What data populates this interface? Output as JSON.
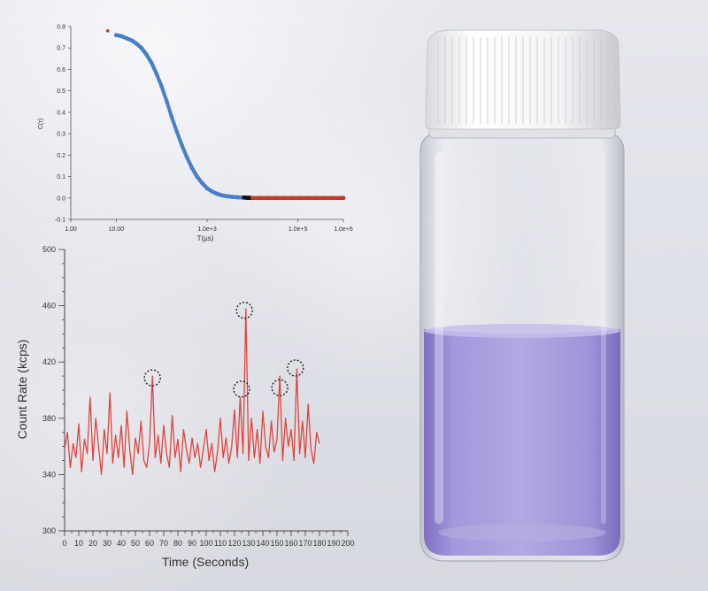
{
  "chart_data": [
    {
      "type": "scatter",
      "title": "",
      "xlabel": "T(µs)",
      "ylabel": "C(τ)",
      "xscale": "log",
      "xlim": [
        1,
        1000000
      ],
      "ylim": [
        -0.1,
        0.8
      ],
      "x_ticks": [
        1,
        10,
        1000,
        100000,
        1000000
      ],
      "x_tick_labels": [
        "1.00",
        "10.00",
        "1.0e+3",
        "1.0e+5",
        "1.0e+6"
      ],
      "y_ticks": [
        -0.1,
        0.0,
        0.1,
        0.2,
        0.3,
        0.4,
        0.5,
        0.6,
        0.7,
        0.8
      ],
      "y_tick_labels": [
        "-0.1",
        "0.0",
        "0.1",
        "0.2",
        "0.3",
        "0.4",
        "0.5",
        "0.6",
        "0.7",
        "0.8"
      ],
      "grid": false,
      "series": [
        {
          "color": "#c0392b",
          "x": [
            6.5
          ],
          "y": [
            0.78
          ],
          "style": "point"
        },
        {
          "color": "#4a7ec8",
          "x": [
            10,
            13,
            17,
            22,
            28,
            36,
            46,
            60,
            77,
            100,
            130,
            165,
            215,
            280,
            360,
            465,
            600,
            775,
            1000,
            1300,
            1670,
            2150,
            2800,
            3600,
            4650,
            6000
          ],
          "y": [
            0.76,
            0.755,
            0.745,
            0.735,
            0.72,
            0.7,
            0.67,
            0.63,
            0.58,
            0.52,
            0.45,
            0.38,
            0.31,
            0.245,
            0.19,
            0.14,
            0.1,
            0.07,
            0.045,
            0.03,
            0.019,
            0.012,
            0.008,
            0.005,
            0.003,
            0.002
          ],
          "style": "points"
        },
        {
          "color": "#111111",
          "x": [
            6500,
            7500,
            8500,
            9500
          ],
          "y": [
            0.002,
            0.001,
            0.001,
            0.0
          ],
          "style": "points"
        },
        {
          "color": "#c0392b",
          "x": [
            10000,
            15000,
            22000,
            33000,
            50000,
            75000,
            110000,
            170000,
            250000,
            380000,
            570000,
            860000,
            1000000
          ],
          "y": [
            0.0,
            0.0,
            0.0,
            0.0,
            0.0,
            0.0,
            0.0,
            0.0,
            0.0,
            0.0,
            0.0,
            0.0,
            0.0
          ],
          "style": "points"
        }
      ]
    },
    {
      "type": "line",
      "title": "",
      "xlabel": "Time (Seconds)",
      "ylabel": "Count Rate (kcps)",
      "xlim": [
        0,
        200
      ],
      "ylim": [
        300,
        500
      ],
      "x_ticks": [
        0,
        10,
        20,
        30,
        40,
        50,
        60,
        70,
        80,
        90,
        100,
        110,
        120,
        130,
        140,
        150,
        160,
        170,
        180,
        190,
        200
      ],
      "y_ticks": [
        300,
        340,
        380,
        420,
        460,
        500
      ],
      "grid": false,
      "series": [
        {
          "color": "#e0443c",
          "x": [
            0,
            2,
            4,
            6,
            8,
            10,
            12,
            14,
            16,
            18,
            20,
            22,
            24,
            26,
            28,
            30,
            32,
            34,
            36,
            38,
            40,
            42,
            44,
            46,
            48,
            50,
            52,
            54,
            56,
            58,
            60,
            62,
            64,
            66,
            68,
            70,
            72,
            74,
            76,
            78,
            80,
            82,
            84,
            86,
            88,
            90,
            92,
            94,
            96,
            98,
            100,
            102,
            104,
            106,
            108,
            110,
            112,
            114,
            116,
            118,
            120,
            122,
            124,
            126,
            127,
            128,
            130,
            132,
            134,
            136,
            138,
            140,
            142,
            144,
            146,
            148,
            150,
            152,
            154,
            156,
            158,
            160,
            162,
            164,
            166,
            168,
            170,
            172,
            174,
            176,
            178,
            180
          ],
          "y": [
            358,
            370,
            345,
            362,
            352,
            376,
            342,
            365,
            355,
            395,
            350,
            380,
            360,
            340,
            372,
            355,
            398,
            348,
            368,
            352,
            375,
            345,
            385,
            358,
            340,
            366,
            355,
            378,
            350,
            345,
            362,
            410,
            352,
            368,
            348,
            375,
            355,
            345,
            382,
            352,
            365,
            342,
            372,
            358,
            348,
            366,
            352,
            362,
            345,
            358,
            372,
            350,
            362,
            342,
            356,
            380,
            352,
            366,
            348,
            360,
            386,
            352,
            395,
            355,
            405,
            458,
            350,
            380,
            352,
            372,
            348,
            385,
            360,
            352,
            378,
            356,
            365,
            410,
            350,
            380,
            360,
            372,
            350,
            415,
            355,
            378,
            352,
            390,
            358,
            348,
            370,
            362
          ],
          "style": "line"
        }
      ],
      "annotations": [
        {
          "type": "dotted-circle",
          "x": 62,
          "y": 410
        },
        {
          "type": "dotted-circle",
          "x": 127,
          "y": 458
        },
        {
          "type": "dotted-circle",
          "x": 125,
          "y": 402
        },
        {
          "type": "dotted-circle",
          "x": 152,
          "y": 403
        },
        {
          "type": "dotted-circle",
          "x": 163,
          "y": 417
        }
      ]
    }
  ],
  "photo": {
    "subject": "glass vial with white screw cap containing purple liquid",
    "liquid_color": "#9d8fd6",
    "cap_color": "#f7f7f8"
  }
}
